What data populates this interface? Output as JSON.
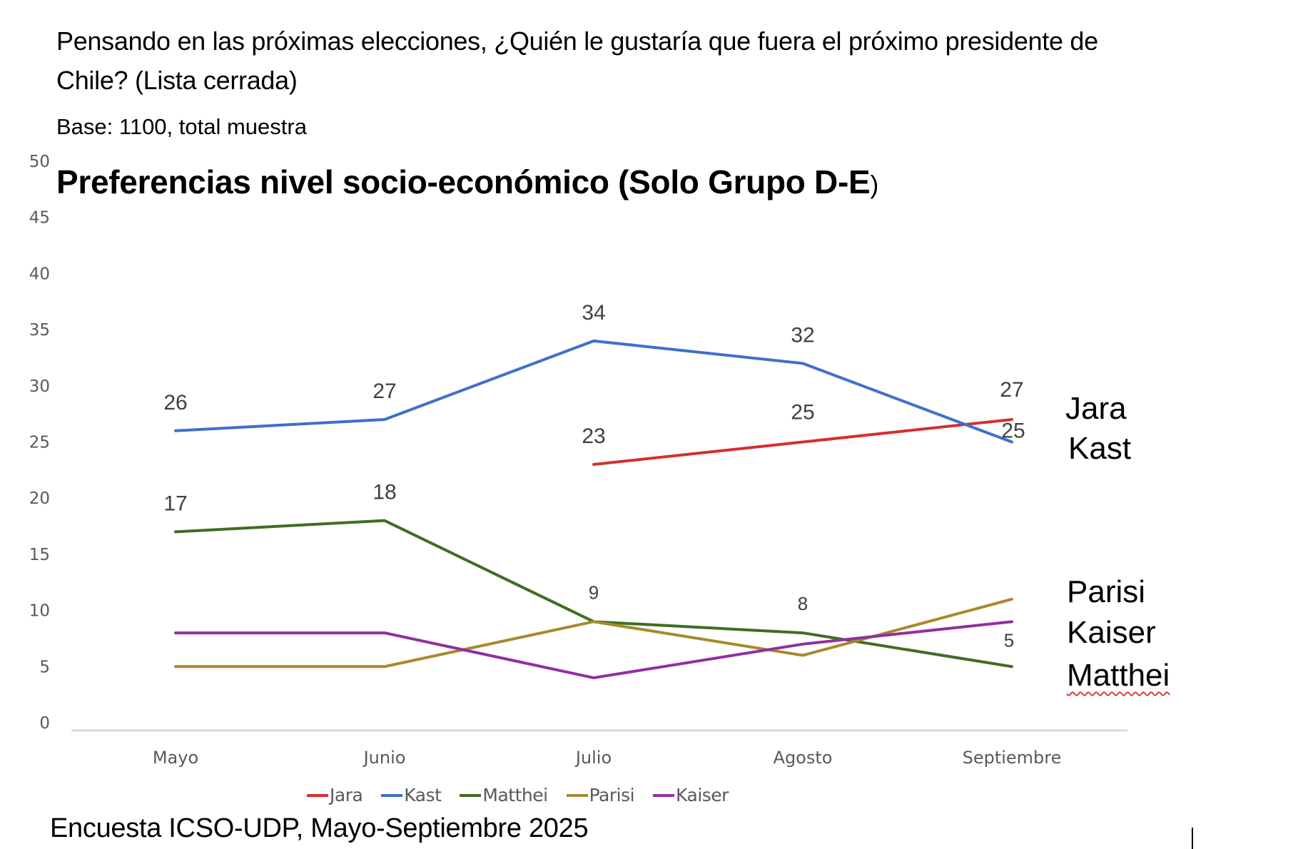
{
  "header": {
    "question": "Pensando en las próximas elecciones, ¿Quién le gustaría que fuera el próximo presidente de Chile? (Lista cerrada)",
    "base": "Base: 1100, total muestra"
  },
  "footer": {
    "source": "Encuesta ICSO-UDP, Mayo-Septiembre 2025"
  },
  "chart_data": {
    "type": "line",
    "title": "Preferencias nivel socio-económico (Solo Grupo D-E",
    "title_suffix": ")",
    "xlabel": "",
    "ylabel": "",
    "categories": [
      "Mayo",
      "Junio",
      "Julio",
      "Agosto",
      "Septiembre"
    ],
    "ylim": [
      0,
      50
    ],
    "yticks": [
      0,
      5,
      10,
      15,
      20,
      25,
      30,
      35,
      40,
      45,
      50
    ],
    "grid": false,
    "legend_position": "bottom",
    "series": [
      {
        "name": "Jara",
        "color": "#d62f2f",
        "values": [
          null,
          null,
          23,
          25,
          27
        ],
        "labels": [
          null,
          null,
          "23",
          "25",
          "27"
        ]
      },
      {
        "name": "Kast",
        "color": "#3f6fcc",
        "values": [
          26,
          27,
          34,
          32,
          25
        ],
        "labels": [
          "26",
          "27",
          "34",
          "32",
          "25"
        ]
      },
      {
        "name": "Matthei",
        "color": "#3f6e22",
        "values": [
          17,
          18,
          9,
          8,
          5
        ],
        "labels": [
          "17",
          "18",
          "9",
          "8",
          "5"
        ]
      },
      {
        "name": "Parisi",
        "color": "#a8892c",
        "values": [
          5,
          5,
          9,
          6,
          11
        ],
        "labels": [
          null,
          null,
          null,
          null,
          null
        ]
      },
      {
        "name": "Kaiser",
        "color": "#922ea0",
        "values": [
          8,
          8,
          4,
          7,
          9
        ],
        "labels": [
          null,
          null,
          null,
          null,
          null
        ]
      }
    ],
    "annotations": [
      {
        "text": "Jara",
        "series": "Jara"
      },
      {
        "text": "Kast",
        "series": "Kast"
      },
      {
        "text": "Parisi",
        "series": "Parisi"
      },
      {
        "text": "Kaiser",
        "series": "Kaiser"
      },
      {
        "text": "Matthei",
        "series": "Matthei"
      }
    ]
  }
}
